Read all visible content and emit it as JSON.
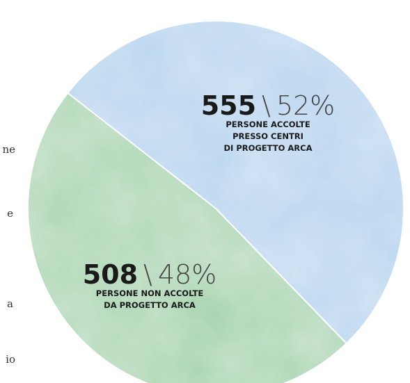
{
  "chart_data": {
    "type": "pie",
    "categories": [
      [
        "PERSONE ACCOLTE",
        "PRESSO CENTRI",
        "DI PROGETTO ARCA"
      ],
      [
        "PERSONE NON ACCOLTE",
        "DA PROGETTO ARCA"
      ]
    ],
    "values": [
      555,
      508
    ],
    "percent_labels": [
      "52%",
      "48%"
    ],
    "separator": "\\",
    "colors": [
      "#b9d6f0",
      "#a9d5b1"
    ],
    "side_text": [
      "ne",
      "e",
      "a",
      "io"
    ]
  }
}
